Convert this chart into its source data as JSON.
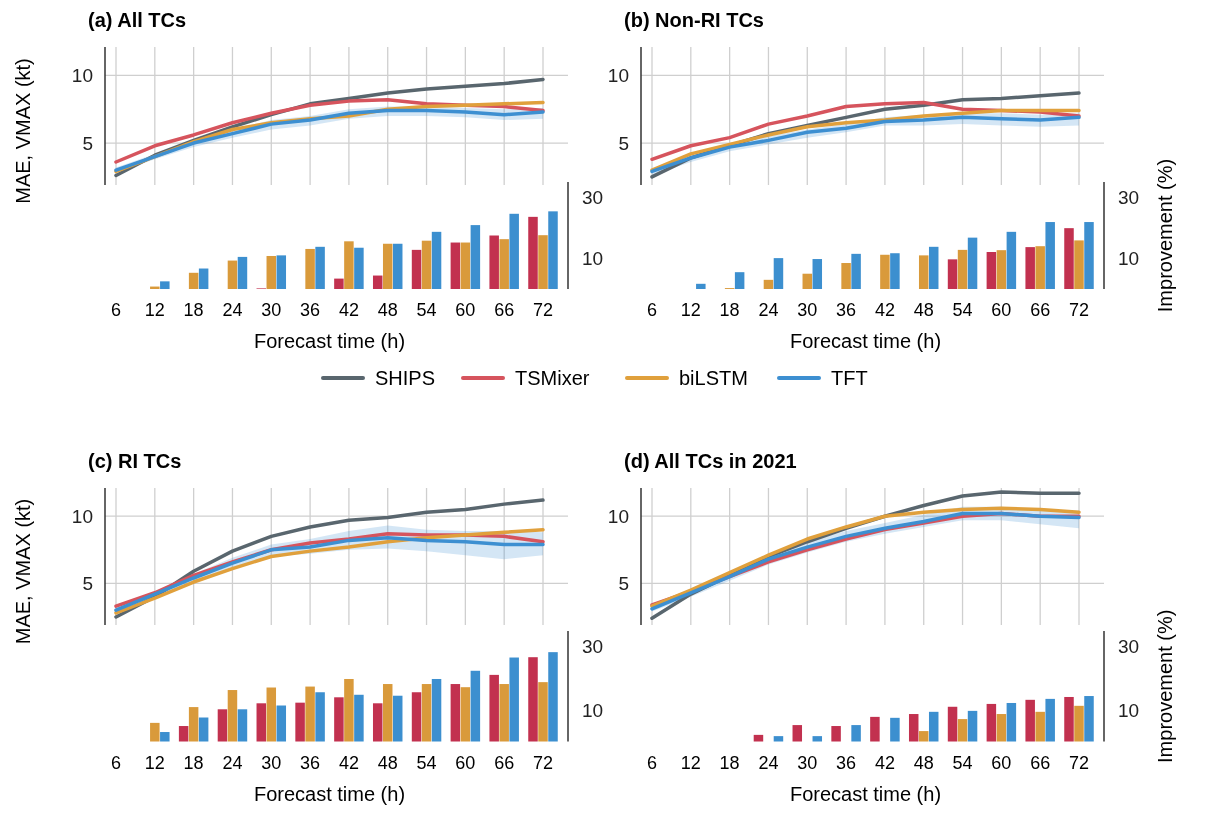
{
  "chart_data": [
    {
      "type": "line",
      "title": "(a) All TCs",
      "ylabel": "MAE, VMAX (kt)",
      "categories": [
        "6",
        "12",
        "18",
        "24",
        "30",
        "36",
        "42",
        "48",
        "54",
        "60",
        "66",
        "72"
      ],
      "ylim": [
        1.9,
        12.1
      ],
      "yticks": [
        5,
        10
      ],
      "grid": true,
      "tick_labels": "y",
      "legend": "bottom",
      "series": [
        {
          "name": "SHIPS",
          "color": "#59666e",
          "values": [
            2.6,
            4.1,
            5.2,
            6.2,
            7.1,
            7.9,
            8.3,
            8.7,
            9.0,
            9.2,
            9.4,
            9.7
          ]
        },
        {
          "name": "TSMixer",
          "color": "#d6545d",
          "values": [
            3.6,
            4.8,
            5.6,
            6.5,
            7.2,
            7.8,
            8.1,
            8.2,
            7.9,
            7.8,
            7.7,
            7.4
          ]
        },
        {
          "name": "biLSTM",
          "color": "#e0a03c",
          "values": [
            2.9,
            4.0,
            5.1,
            6.0,
            6.5,
            6.8,
            7.0,
            7.5,
            7.7,
            7.8,
            7.9,
            8.0
          ]
        },
        {
          "name": "TFT",
          "color": "#3d8fd1",
          "values": [
            3.0,
            4.0,
            5.0,
            5.7,
            6.4,
            6.7,
            7.2,
            7.4,
            7.4,
            7.3,
            7.1,
            7.3
          ],
          "lower": [
            2.8,
            3.8,
            4.7,
            5.4,
            6.0,
            6.3,
            6.8,
            7.0,
            7.0,
            6.9,
            6.7,
            6.8
          ],
          "upper": [
            3.2,
            4.2,
            5.2,
            6.0,
            6.7,
            7.0,
            7.5,
            7.7,
            7.7,
            7.6,
            7.5,
            7.6
          ]
        }
      ]
    },
    {
      "type": "bar",
      "xlabel": "Forecast time (h)",
      "categories": [
        "6",
        "12",
        "18",
        "24",
        "30",
        "36",
        "42",
        "48",
        "54",
        "60",
        "66",
        "72"
      ],
      "ylim": [
        0,
        35
      ],
      "yticks": [
        10,
        30
      ],
      "series": [
        {
          "color": "#c2314f",
          "values": [
            null,
            null,
            null,
            null,
            0.2,
            null,
            3.4,
            4.4,
            12.8,
            15.2,
            17.5,
            23.6
          ]
        },
        {
          "color": "#d99a3b",
          "values": [
            null,
            0.8,
            5.3,
            9.3,
            10.8,
            13.1,
            15.6,
            14.8,
            15.8,
            15.2,
            16.3,
            17.6
          ]
        },
        {
          "color": "#3c8fcf",
          "values": [
            null,
            2.5,
            6.7,
            10.5,
            11.0,
            13.8,
            13.5,
            14.8,
            18.7,
            20.9,
            24.6,
            25.4
          ]
        }
      ]
    },
    {
      "type": "line",
      "title": "(b) Non-RI TCs",
      "categories": [
        "6",
        "12",
        "18",
        "24",
        "30",
        "36",
        "42",
        "48",
        "54",
        "60",
        "66",
        "72"
      ],
      "ylim": [
        1.9,
        12.1
      ],
      "yticks": [
        5,
        10
      ],
      "grid": true,
      "tick_labels": "y",
      "series": [
        {
          "color": "#59666e",
          "values": [
            2.5,
            3.9,
            4.8,
            5.7,
            6.3,
            6.9,
            7.5,
            7.8,
            8.2,
            8.3,
            8.5,
            8.7
          ]
        },
        {
          "color": "#d6545d",
          "values": [
            3.8,
            4.8,
            5.4,
            6.4,
            7.0,
            7.7,
            7.9,
            8.0,
            7.5,
            7.4,
            7.3,
            7.0
          ]
        },
        {
          "color": "#e0a03c",
          "values": [
            3.0,
            4.2,
            4.9,
            5.6,
            6.2,
            6.5,
            6.7,
            7.0,
            7.2,
            7.4,
            7.4,
            7.4
          ]
        },
        {
          "color": "#3d8fd1",
          "values": [
            2.9,
            3.9,
            4.7,
            5.2,
            5.8,
            6.1,
            6.6,
            6.7,
            6.9,
            6.8,
            6.7,
            6.9
          ],
          "lower": [
            2.6,
            3.6,
            4.4,
            4.9,
            5.4,
            5.8,
            6.3,
            6.3,
            6.4,
            6.3,
            6.2,
            6.3
          ],
          "upper": [
            3.1,
            4.1,
            4.9,
            5.5,
            6.0,
            6.4,
            6.9,
            7.1,
            7.2,
            7.2,
            7.1,
            7.2
          ]
        }
      ]
    },
    {
      "type": "bar",
      "xlabel": "Forecast time (h)",
      "ylabel": "Improvement (%)",
      "categories": [
        "6",
        "12",
        "18",
        "24",
        "30",
        "36",
        "42",
        "48",
        "54",
        "60",
        "66",
        "72"
      ],
      "ylim": [
        0,
        35
      ],
      "yticks": [
        10,
        30
      ],
      "series": [
        {
          "color": "#c2314f",
          "values": [
            null,
            null,
            null,
            null,
            null,
            null,
            null,
            null,
            9.7,
            12.1,
            13.7,
            19.9
          ]
        },
        {
          "color": "#d99a3b",
          "values": [
            null,
            null,
            0.3,
            3.0,
            5.0,
            8.5,
            11.2,
            11.0,
            12.8,
            12.7,
            14.0,
            15.9
          ]
        },
        {
          "color": "#3c8fcf",
          "values": [
            null,
            1.7,
            5.5,
            10.1,
            9.8,
            11.5,
            11.7,
            13.8,
            16.8,
            18.7,
            21.9,
            21.9
          ]
        }
      ]
    },
    {
      "type": "line",
      "title": "(c) RI TCs",
      "ylabel": "MAE, VMAX (kt)",
      "categories": [
        "6",
        "12",
        "18",
        "24",
        "30",
        "36",
        "42",
        "48",
        "54",
        "60",
        "66",
        "72"
      ],
      "ylim": [
        1.9,
        12.1
      ],
      "yticks": [
        5,
        10
      ],
      "grid": true,
      "tick_labels": "y",
      "series": [
        {
          "color": "#59666e",
          "values": [
            2.5,
            4.0,
            5.9,
            7.4,
            8.5,
            9.2,
            9.7,
            9.9,
            10.3,
            10.5,
            10.9,
            11.2
          ]
        },
        {
          "color": "#d6545d",
          "values": [
            3.3,
            4.3,
            5.6,
            6.6,
            7.5,
            8.0,
            8.3,
            8.7,
            8.6,
            8.6,
            8.5,
            8.1
          ]
        },
        {
          "color": "#e0a03c",
          "values": [
            2.8,
            3.9,
            5.1,
            6.1,
            7.0,
            7.4,
            7.7,
            8.1,
            8.4,
            8.6,
            8.8,
            9.0
          ]
        },
        {
          "color": "#3d8fd1",
          "values": [
            3.0,
            4.2,
            5.4,
            6.5,
            7.5,
            7.7,
            8.2,
            8.4,
            8.2,
            8.1,
            7.9,
            7.9
          ],
          "lower": [
            2.7,
            3.9,
            5.1,
            6.1,
            7.0,
            7.2,
            7.5,
            7.6,
            7.4,
            7.1,
            6.8,
            7.1
          ],
          "upper": [
            3.2,
            4.4,
            5.7,
            6.9,
            7.9,
            8.3,
            8.9,
            9.3,
            9.0,
            8.9,
            8.9,
            8.8
          ]
        }
      ]
    },
    {
      "type": "bar",
      "xlabel": "Forecast time (h)",
      "categories": [
        "6",
        "12",
        "18",
        "24",
        "30",
        "36",
        "42",
        "48",
        "54",
        "60",
        "66",
        "72"
      ],
      "ylim": [
        0,
        35
      ],
      "yticks": [
        10,
        30
      ],
      "series": [
        {
          "color": "#c2314f",
          "values": [
            null,
            null,
            4.9,
            10.2,
            12.1,
            12.3,
            14.0,
            12.1,
            15.6,
            18.2,
            21.1,
            26.7
          ]
        },
        {
          "color": "#d99a3b",
          "values": [
            null,
            5.9,
            10.9,
            16.3,
            17.1,
            17.4,
            19.8,
            18.2,
            18.2,
            17.2,
            18.2,
            18.8
          ]
        },
        {
          "color": "#3c8fcf",
          "values": [
            null,
            3.0,
            7.6,
            10.2,
            11.4,
            15.6,
            14.8,
            14.5,
            19.8,
            22.4,
            26.6,
            28.3
          ]
        }
      ]
    },
    {
      "type": "line",
      "title": "(d) All TCs in 2021",
      "categories": [
        "6",
        "12",
        "18",
        "24",
        "30",
        "36",
        "42",
        "48",
        "54",
        "60",
        "66",
        "72"
      ],
      "ylim": [
        1.9,
        12.1
      ],
      "yticks": [
        5,
        10
      ],
      "grid": true,
      "tick_labels": "y",
      "series": [
        {
          "color": "#59666e",
          "values": [
            2.4,
            4.2,
            5.6,
            7.0,
            8.1,
            9.1,
            10.0,
            10.8,
            11.5,
            11.8,
            11.7,
            11.7
          ]
        },
        {
          "color": "#d6545d",
          "values": [
            3.4,
            4.4,
            5.5,
            6.6,
            7.5,
            8.3,
            9.0,
            9.5,
            10.0,
            10.2,
            10.0,
            10.0
          ]
        },
        {
          "color": "#e0a03c",
          "values": [
            3.3,
            4.5,
            5.8,
            7.1,
            8.3,
            9.2,
            10.0,
            10.3,
            10.5,
            10.6,
            10.5,
            10.3
          ]
        },
        {
          "color": "#3d8fd1",
          "values": [
            3.1,
            4.3,
            5.5,
            6.8,
            7.7,
            8.5,
            9.1,
            9.6,
            10.2,
            10.2,
            10.0,
            9.9
          ],
          "lower": [
            2.9,
            4.0,
            5.2,
            6.4,
            7.3,
            8.1,
            8.7,
            9.2,
            9.7,
            9.7,
            9.4,
            9.1
          ],
          "upper": [
            3.4,
            4.5,
            5.9,
            7.1,
            8.1,
            8.9,
            9.5,
            10.1,
            10.7,
            10.7,
            10.5,
            10.4
          ]
        }
      ]
    },
    {
      "type": "bar",
      "xlabel": "Forecast time (h)",
      "ylabel": "Improvement (%)",
      "categories": [
        "6",
        "12",
        "18",
        "24",
        "30",
        "36",
        "42",
        "48",
        "54",
        "60",
        "66",
        "72"
      ],
      "ylim": [
        0,
        35
      ],
      "yticks": [
        10,
        30
      ],
      "series": [
        {
          "color": "#c2314f",
          "values": [
            null,
            null,
            null,
            2.1,
            5.2,
            4.9,
            7.8,
            8.7,
            11.0,
            11.9,
            13.2,
            14.1
          ]
        },
        {
          "color": "#d99a3b",
          "values": [
            null,
            null,
            null,
            null,
            null,
            null,
            null,
            3.3,
            7.1,
            8.7,
            9.4,
            11.3
          ]
        },
        {
          "color": "#3c8fcf",
          "values": [
            null,
            null,
            null,
            1.7,
            1.7,
            5.2,
            7.5,
            9.4,
            9.7,
            12.2,
            13.5,
            14.4
          ]
        }
      ]
    }
  ]
}
